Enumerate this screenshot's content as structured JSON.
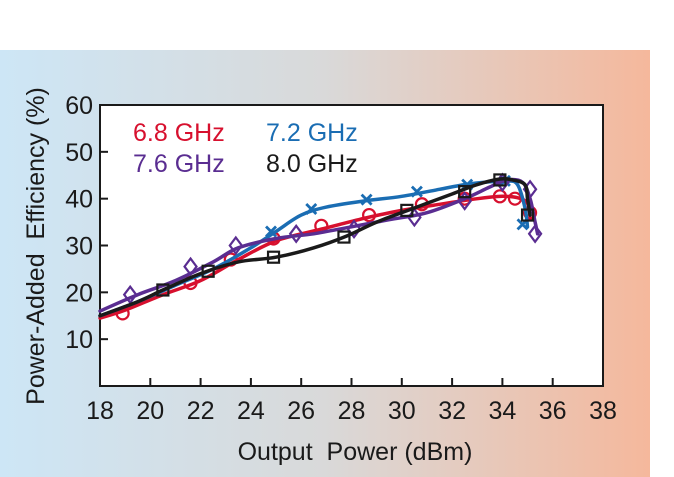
{
  "chart_data": {
    "type": "line",
    "title": "",
    "xlabel": "Output  Power (dBm)",
    "ylabel": "Power-Added  Efficiency (%)",
    "xlim": [
      18,
      38
    ],
    "ylim": [
      0,
      60
    ],
    "xticks": [
      18,
      20,
      22,
      24,
      26,
      28,
      30,
      32,
      34,
      36,
      38
    ],
    "yticks": [
      10,
      20,
      30,
      40,
      50,
      60
    ],
    "grid": false,
    "legend_position": "top-left",
    "series": [
      {
        "name": "6.8 GHz",
        "color": "#d7102e",
        "marker": "circle",
        "curve": [
          [
            18.0,
            14.5
          ],
          [
            19.0,
            16.2
          ],
          [
            20.5,
            19.5
          ],
          [
            22.0,
            22.5
          ],
          [
            23.5,
            27.0
          ],
          [
            25.0,
            31.0
          ],
          [
            26.8,
            33.5
          ],
          [
            28.5,
            35.8
          ],
          [
            30.0,
            37.5
          ],
          [
            31.5,
            38.8
          ],
          [
            33.0,
            40.0
          ],
          [
            34.0,
            40.5
          ],
          [
            34.6,
            40.2
          ],
          [
            35.0,
            39.0
          ],
          [
            35.1,
            36.0
          ]
        ],
        "markers": [
          [
            18.9,
            15.5
          ],
          [
            21.6,
            22.0
          ],
          [
            23.2,
            27.0
          ],
          [
            24.9,
            31.5
          ],
          [
            26.8,
            34.2
          ],
          [
            28.7,
            36.5
          ],
          [
            30.8,
            38.8
          ],
          [
            32.5,
            40.0
          ],
          [
            33.9,
            40.5
          ],
          [
            34.5,
            40.0
          ],
          [
            35.1,
            37.0
          ]
        ]
      },
      {
        "name": "7.2 GHz",
        "color": "#1a6db3",
        "marker": "x",
        "curve": [
          [
            18.0,
            15.0
          ],
          [
            19.5,
            18.0
          ],
          [
            21.0,
            21.5
          ],
          [
            22.5,
            25.0
          ],
          [
            24.0,
            29.5
          ],
          [
            25.0,
            33.0
          ],
          [
            26.0,
            36.5
          ],
          [
            27.0,
            38.2
          ],
          [
            28.5,
            39.5
          ],
          [
            30.0,
            40.5
          ],
          [
            31.5,
            42.0
          ],
          [
            32.5,
            43.0
          ],
          [
            33.5,
            43.6
          ],
          [
            34.2,
            43.8
          ],
          [
            34.6,
            43.0
          ],
          [
            34.9,
            38.0
          ],
          [
            35.0,
            34.0
          ]
        ],
        "markers": [
          [
            24.8,
            33.0
          ],
          [
            26.4,
            37.8
          ],
          [
            28.6,
            39.8
          ],
          [
            30.6,
            41.5
          ],
          [
            32.6,
            43.0
          ],
          [
            34.1,
            43.8
          ],
          [
            34.8,
            34.5
          ]
        ]
      },
      {
        "name": "7.6 GHz",
        "color": "#5a2d91",
        "marker": "diamond",
        "curve": [
          [
            18.0,
            16.0
          ],
          [
            19.5,
            19.5
          ],
          [
            21.0,
            22.5
          ],
          [
            22.5,
            26.5
          ],
          [
            23.5,
            29.5
          ],
          [
            25.0,
            31.5
          ],
          [
            26.5,
            32.5
          ],
          [
            28.0,
            34.0
          ],
          [
            29.5,
            35.5
          ],
          [
            31.0,
            37.0
          ],
          [
            32.5,
            40.0
          ],
          [
            33.5,
            42.5
          ],
          [
            34.2,
            44.0
          ],
          [
            34.8,
            43.5
          ],
          [
            35.1,
            40.0
          ],
          [
            35.3,
            35.0
          ],
          [
            35.4,
            32.5
          ]
        ],
        "markers": [
          [
            19.2,
            19.5
          ],
          [
            21.6,
            25.5
          ],
          [
            23.4,
            30.0
          ],
          [
            25.8,
            32.5
          ],
          [
            28.1,
            33.5
          ],
          [
            30.5,
            36.0
          ],
          [
            32.5,
            39.5
          ],
          [
            34.0,
            43.5
          ],
          [
            35.1,
            42.0
          ],
          [
            35.3,
            32.5
          ]
        ]
      },
      {
        "name": "8.0 GHz",
        "color": "#1a1a1a",
        "marker": "square",
        "curve": [
          [
            18.0,
            15.0
          ],
          [
            19.5,
            18.0
          ],
          [
            20.5,
            20.5
          ],
          [
            22.0,
            24.0
          ],
          [
            23.5,
            26.5
          ],
          [
            25.0,
            27.5
          ],
          [
            26.5,
            29.5
          ],
          [
            27.8,
            32.0
          ],
          [
            29.0,
            35.0
          ],
          [
            30.5,
            38.0
          ],
          [
            32.0,
            41.0
          ],
          [
            33.0,
            43.0
          ],
          [
            33.9,
            44.2
          ],
          [
            34.4,
            44.0
          ],
          [
            34.9,
            43.0
          ],
          [
            35.0,
            40.0
          ],
          [
            35.1,
            36.5
          ]
        ],
        "markers": [
          [
            20.5,
            20.5
          ],
          [
            22.3,
            24.5
          ],
          [
            24.9,
            27.5
          ],
          [
            27.7,
            31.8
          ],
          [
            30.2,
            37.5
          ],
          [
            32.5,
            41.5
          ],
          [
            33.9,
            44.0
          ],
          [
            35.0,
            36.5
          ]
        ]
      }
    ],
    "legend": [
      {
        "label": "6.8 GHz",
        "color": "#d7102e"
      },
      {
        "label": "7.2 GHz",
        "color": "#1a6db3"
      },
      {
        "label": "7.6 GHz",
        "color": "#5a2d91"
      },
      {
        "label": "8.0 GHz",
        "color": "#1a1a1a"
      }
    ]
  },
  "colors": {
    "background_left": "#cde6f6",
    "background_middle": "#d9d9d9",
    "background_right": "#f5b89c"
  }
}
